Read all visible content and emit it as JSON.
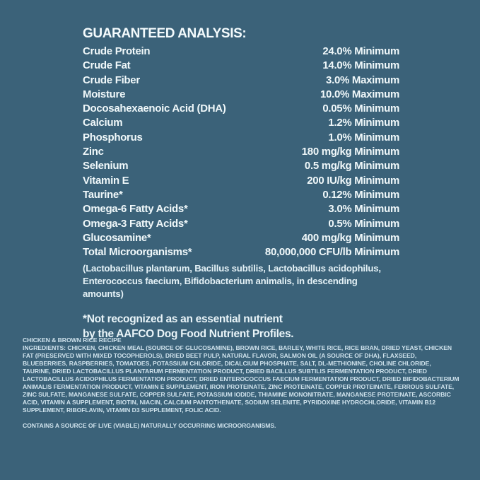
{
  "colors": {
    "background": "#3b6279",
    "text_primary": "#f0f8fa",
    "text_secondary": "#cfe2ec"
  },
  "analysis": {
    "header": "GUARANTEED ANALYSIS:",
    "rows": [
      {
        "label": "Crude Protein",
        "value": "24.0% Minimum"
      },
      {
        "label": "Crude Fat",
        "value": "14.0% Minimum"
      },
      {
        "label": "Crude Fiber",
        "value": "3.0% Maximum"
      },
      {
        "label": "Moisture",
        "value": "10.0% Maximum"
      },
      {
        "label": "Docosahexaenoic Acid (DHA)",
        "value": "0.05% Minimum"
      },
      {
        "label": "Calcium",
        "value": "1.2% Minimum"
      },
      {
        "label": "Phosphorus",
        "value": "1.0% Minimum"
      },
      {
        "label": "Zinc",
        "value": "180 mg/kg Minimum"
      },
      {
        "label": "Selenium",
        "value": "0.5 mg/kg Minimum"
      },
      {
        "label": "Vitamin E",
        "value": "200 IU/kg Minimum"
      },
      {
        "label": "Taurine*",
        "value": "0.12% Minimum"
      },
      {
        "label": "Omega-6 Fatty Acids*",
        "value": "3.0% Minimum"
      },
      {
        "label": "Omega-3 Fatty Acids*",
        "value": "0.5% Minimum"
      },
      {
        "label": "Glucosamine*",
        "value": "400 mg/kg Minimum"
      },
      {
        "label": "Total Microorganisms*",
        "value": "80,000,000 CFU/lb Minimum"
      }
    ],
    "microorganisms_note_line1": "(Lactobacillus plantarum, Bacillus subtilis, Lactobacillus acidophilus,",
    "microorganisms_note_line2": "Enterococcus faecium, Bifidobacterium animalis, in descending amounts)",
    "footnote_line1": "*Not recognized as an essential nutrient",
    "footnote_line2": "by the AAFCO Dog Food Nutrient Profiles."
  },
  "bottom": {
    "recipe_title": "CHICKEN & BROWN RICE RECIPE",
    "ingredients_label": "INGREDIENTS:",
    "ingredients_text": "CHICKEN, CHICKEN MEAL (SOURCE OF GLUCOSAMINE), BROWN RICE, BARLEY, WHITE RICE, RICE BRAN, DRIED YEAST, CHICKEN FAT (PRESERVED WITH MIXED TOCOPHEROLS), DRIED BEET PULP, NATURAL FLAVOR, SALMON OIL (A SOURCE OF DHA), FLAXSEED, BLUEBERRIES, RASPBERRIES, TOMATOES, POTASSIUM CHLORIDE, DICALCIUM PHOSPHATE, SALT, DL-METHIONINE, CHOLINE CHLORIDE, TAURINE, DRIED LACTOBACILLUS PLANTARUM FERMENTATION PRODUCT, DRIED BACILLUS SUBTILIS FERMENTATION PRODUCT, DRIED LACTOBACILLUS ACIDOPHILUS FERMENTATION PRODUCT, DRIED ENTEROCOCCUS FAECIUM FERMENTATION PRODUCT, DRIED BIFIDOBACTERIUM ANIMALIS FERMENTATION PRODUCT, VITAMIN E SUPPLEMENT, IRON PROTEINATE, ZINC PROTEINATE, COPPER PROTEINATE, FERROUS SULFATE, ZINC SULFATE, MANGANESE SULFATE, COPPER SULFATE, POTASSIUM IODIDE, THIAMINE MONONITRATE, MANGANESE PROTEINATE, ASCORBIC ACID, VITAMIN A SUPPLEMENT, BIOTIN, NIACIN, CALCIUM PANTOTHENATE, SODIUM SELENITE, PYRIDOXINE HYDROCHLORIDE, VITAMIN B12 SUPPLEMENT, RIBOFLAVIN, VITAMIN D3 SUPPLEMENT, FOLIC ACID.",
    "contains_note": "CONTAINS A SOURCE OF LIVE (VIABLE) NATURALLY OCCURRING MICROORGANISMS."
  }
}
